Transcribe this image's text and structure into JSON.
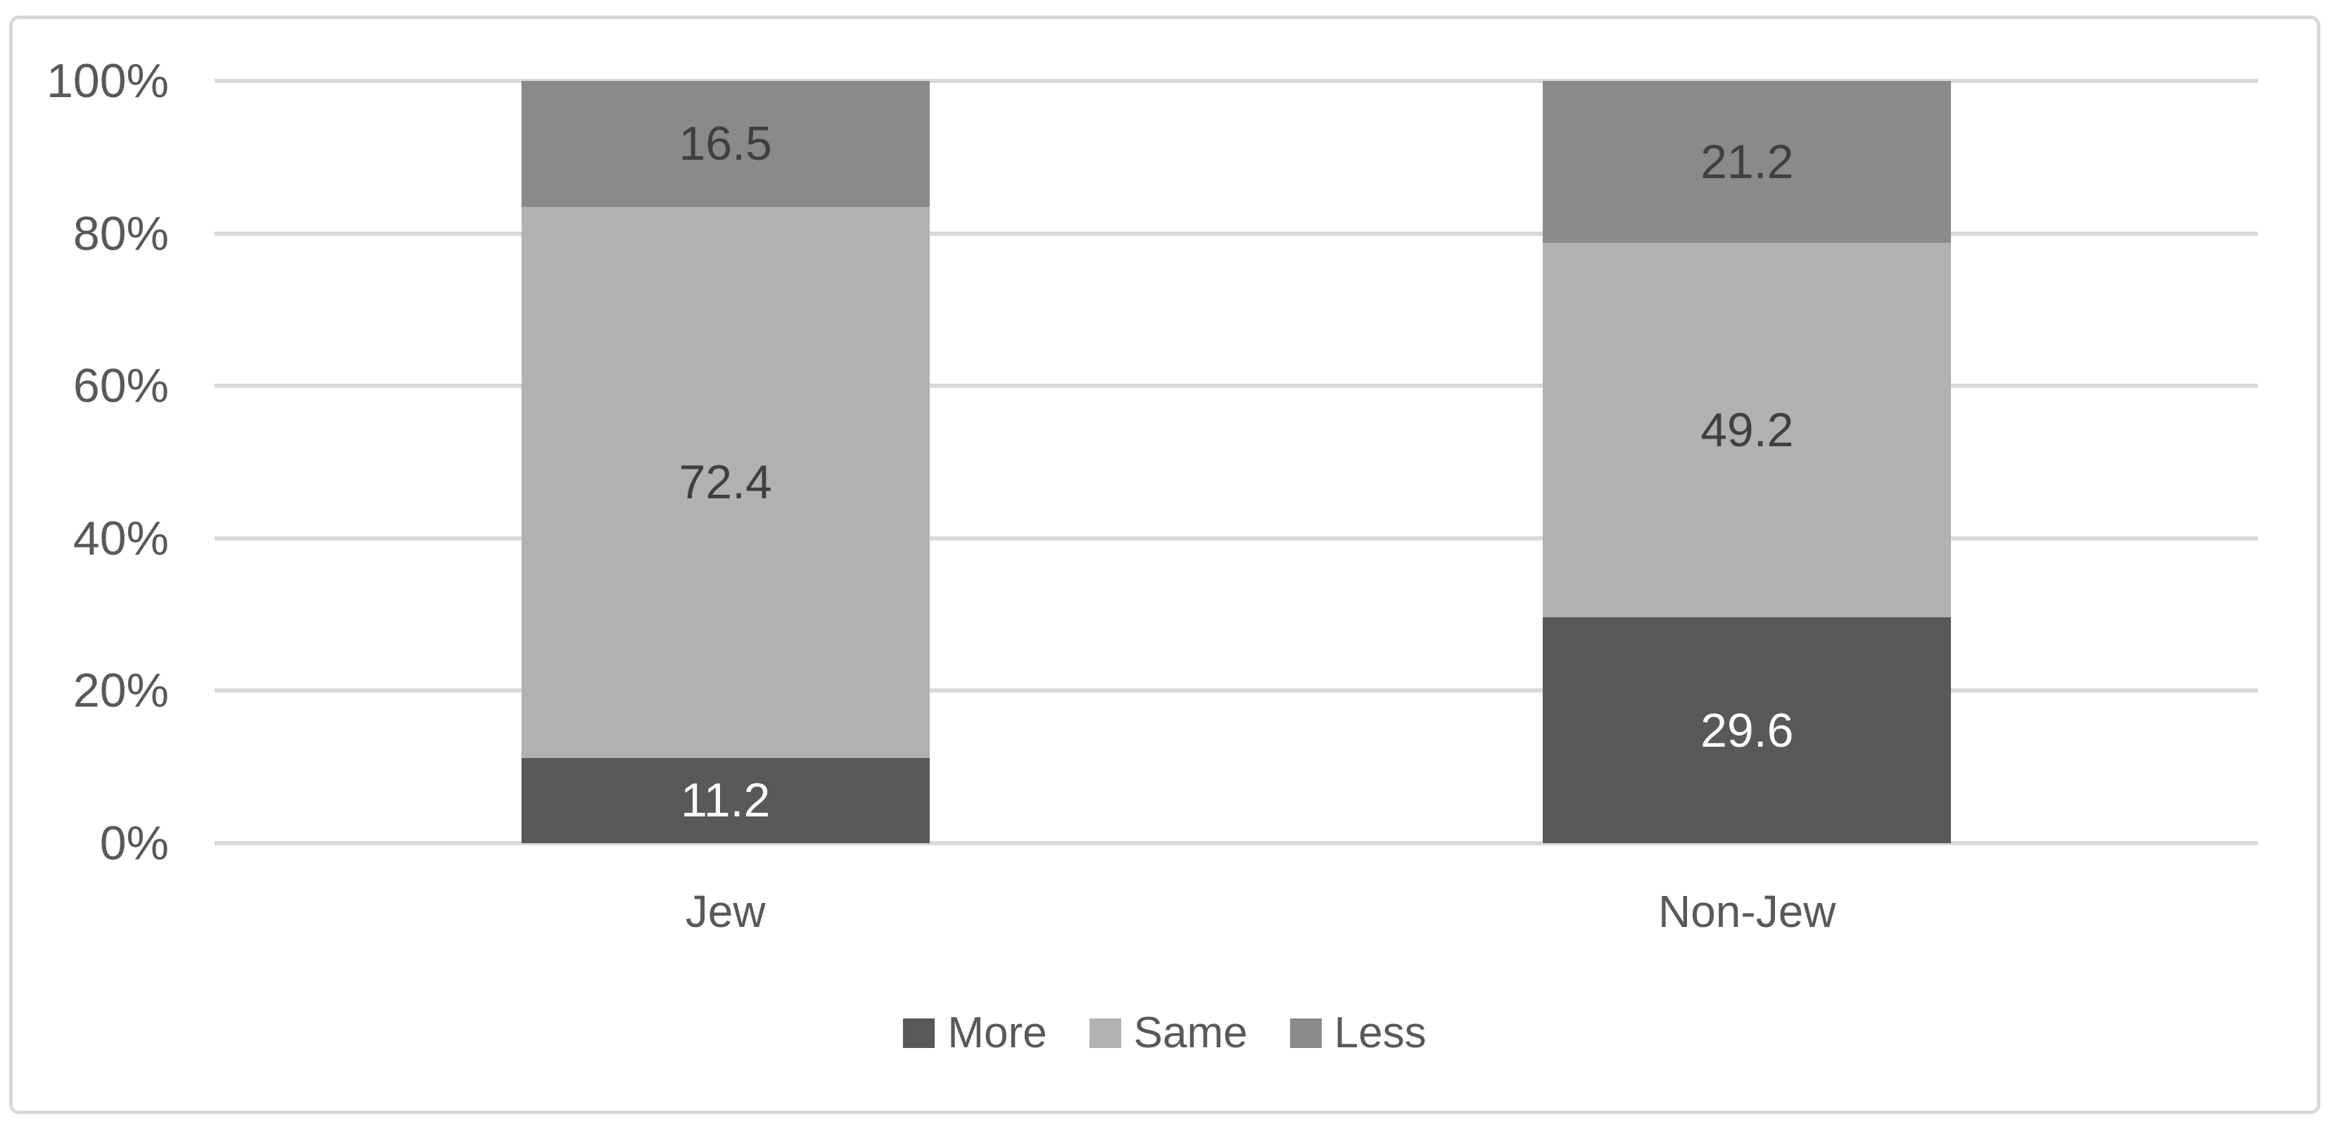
{
  "chart_data": {
    "type": "bar",
    "subtype": "stacked-100",
    "title": "",
    "xlabel": "",
    "ylabel": "",
    "categories": [
      "Jew",
      "Non-Jew"
    ],
    "series": [
      {
        "name": "More",
        "values": [
          11.2,
          29.6
        ],
        "color": "#595959",
        "label_color": "#ffffff"
      },
      {
        "name": "Same",
        "values": [
          72.4,
          49.2
        ],
        "color": "#b1b1b1",
        "label_color": "#404040"
      },
      {
        "name": "Less",
        "values": [
          16.5,
          21.2
        ],
        "color": "#8a8a8a",
        "label_color": "#404040"
      }
    ],
    "data_labels": {
      "jew": [
        "11.2",
        "72.4",
        "16.5"
      ],
      "non_jew": [
        "29.6",
        "49.2",
        "21.2"
      ]
    },
    "y_axis": {
      "tick_labels": [
        "0%",
        "20%",
        "40%",
        "60%",
        "80%",
        "100%"
      ],
      "tick_values": [
        0,
        20,
        40,
        60,
        80,
        100
      ],
      "min": 0,
      "max": 100
    },
    "legend": {
      "position": "bottom",
      "entries": [
        "More",
        "Same",
        "Less"
      ]
    },
    "grid": true,
    "colors": {
      "gridline": "#d9d9d9",
      "frame_border": "#d9d9d9",
      "axis_text": "#595959",
      "category_text": "#595959",
      "legend_text": "#595959",
      "background": "#ffffff"
    }
  }
}
